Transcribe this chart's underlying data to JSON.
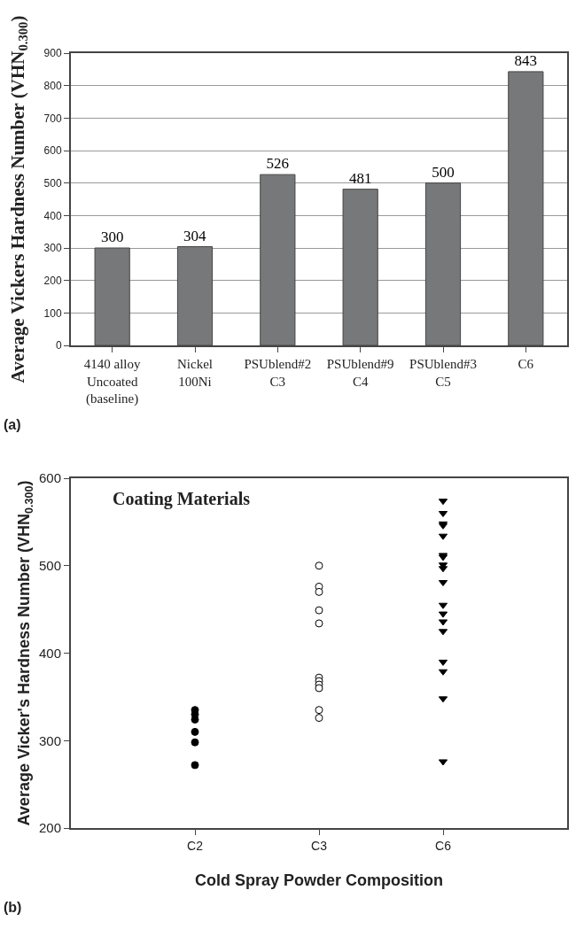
{
  "chart_data": [
    {
      "type": "bar",
      "ylabel": "Average Vickers Hardness Number (VHN$_{0.300}$)",
      "categories": [
        "4140 alloy\nUncoated\n(baseline)",
        "Nickel\n100Ni",
        "PSUblend#2\nC3",
        "PSUblend#9\nC4",
        "PSUblend#3\nC5",
        "C6"
      ],
      "values": [
        300,
        304,
        526,
        481,
        500,
        843
      ],
      "color": "#76787a",
      "data_labels": true,
      "ylim": [
        0,
        900
      ],
      "yticks": [
        0,
        100,
        200,
        300,
        400,
        500,
        600,
        700,
        800,
        900
      ],
      "grid": "y",
      "legend": false,
      "annotations": [
        "(a)"
      ]
    },
    {
      "type": "scatter",
      "xlabel": "Cold Spray Powder Composition",
      "ylabel": "Average Vicker's Hardness Number (VHN$_{0.300}$)",
      "categories": [
        "C2",
        "C3",
        "C6"
      ],
      "series": [
        {
          "x": [
            "C2",
            "C2",
            "C2",
            "C2",
            "C2",
            "C2"
          ],
          "values": [
            335,
            330,
            324,
            310,
            298,
            272
          ],
          "color": "#000000",
          "marker": "circle"
        },
        {
          "x": [
            "C3",
            "C3",
            "C3",
            "C3",
            "C3",
            "C3",
            "C3",
            "C3",
            "C3",
            "C3",
            "C3"
          ],
          "values": [
            500,
            476,
            470,
            449,
            434,
            372,
            368,
            364,
            360,
            335,
            326
          ],
          "color": "#ffffff",
          "marker": "circle"
        },
        {
          "x": [
            "C6",
            "C6",
            "C6",
            "C6",
            "C6",
            "C6",
            "C6",
            "C6",
            "C6",
            "C6",
            "C6",
            "C6",
            "C6",
            "C6",
            "C6",
            "C6",
            "C6",
            "C6"
          ],
          "values": [
            574,
            560,
            548,
            546,
            534,
            512,
            510,
            501,
            497,
            481,
            455,
            445,
            436,
            425,
            390,
            379,
            348,
            276
          ],
          "color": "#000000",
          "marker": "triangle"
        }
      ],
      "ylim": [
        200,
        600
      ],
      "yticks": [
        200,
        300,
        400,
        500,
        600
      ],
      "grid": false,
      "legend": false,
      "annotations": [
        "Coating Materials",
        "(b)"
      ]
    }
  ]
}
